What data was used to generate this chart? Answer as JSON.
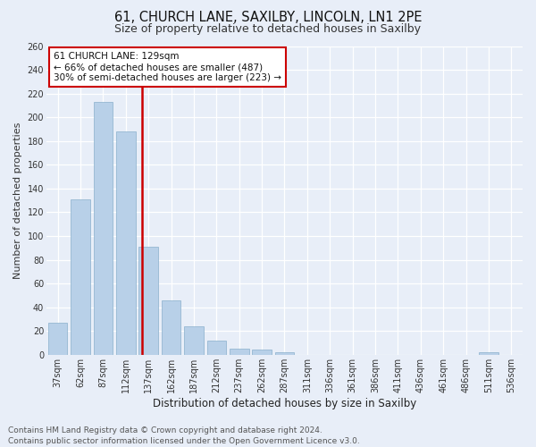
{
  "title": "61, CHURCH LANE, SAXILBY, LINCOLN, LN1 2PE",
  "subtitle": "Size of property relative to detached houses in Saxilby",
  "xlabel": "Distribution of detached houses by size in Saxilby",
  "ylabel": "Number of detached properties",
  "categories": [
    "37sqm",
    "62sqm",
    "87sqm",
    "112sqm",
    "137sqm",
    "162sqm",
    "187sqm",
    "212sqm",
    "237sqm",
    "262sqm",
    "287sqm",
    "311sqm",
    "336sqm",
    "361sqm",
    "386sqm",
    "411sqm",
    "436sqm",
    "461sqm",
    "486sqm",
    "511sqm",
    "536sqm"
  ],
  "values": [
    27,
    131,
    213,
    188,
    91,
    46,
    24,
    12,
    5,
    4,
    2,
    0,
    0,
    0,
    0,
    0,
    0,
    0,
    0,
    2,
    0
  ],
  "bar_color": "#b8d0e8",
  "bar_edgecolor": "#8ab0cc",
  "vline_color": "#cc0000",
  "annotation_title": "61 CHURCH LANE: 129sqm",
  "annotation_line1": "← 66% of detached houses are smaller (487)",
  "annotation_line2": "30% of semi-detached houses are larger (223) →",
  "annotation_box_color": "#cc0000",
  "ylim": [
    0,
    260
  ],
  "yticks": [
    0,
    20,
    40,
    60,
    80,
    100,
    120,
    140,
    160,
    180,
    200,
    220,
    240,
    260
  ],
  "footer_line1": "Contains HM Land Registry data © Crown copyright and database right 2024.",
  "footer_line2": "Contains public sector information licensed under the Open Government Licence v3.0.",
  "bg_color": "#e8eef8",
  "plot_bg_color": "#e8eef8",
  "title_fontsize": 10.5,
  "subtitle_fontsize": 9,
  "ylabel_fontsize": 8,
  "xlabel_fontsize": 8.5,
  "tick_fontsize": 7,
  "annotation_fontsize": 7.5,
  "footer_fontsize": 6.5
}
